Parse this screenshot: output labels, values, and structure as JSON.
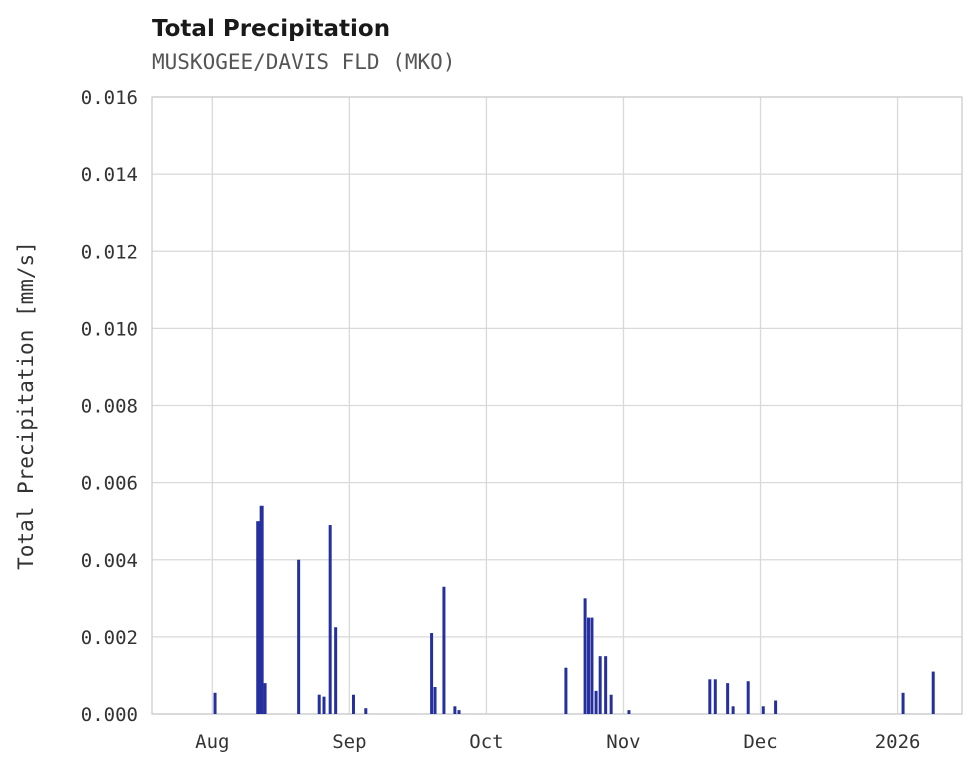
{
  "header": {
    "title": "Total Precipitation",
    "subtitle": "MUSKOGEE/DAVIS FLD (MKO)"
  },
  "colors": {
    "bar": "#252f9e",
    "grid": "#d9d9d9",
    "axis_border": "#cccccc",
    "title": "#191919",
    "subtitle": "#555555",
    "tick": "#333333"
  },
  "chart_data": {
    "type": "bar",
    "title": "Total Precipitation",
    "subtitle": "MUSKOGEE/DAVIS FLD (MKO)",
    "xlabel": "",
    "ylabel": "Total Precipitation [mm/s]",
    "grid": true,
    "legend": false,
    "ylim": [
      0,
      0.016
    ],
    "xlim": [
      -0.44,
      5.47
    ],
    "x_scale": "months: 0=Aug, 1=Sep, 2=Oct, 3=Nov, 4=Dec, 5=2026(Jan)",
    "yticks": [
      {
        "value": 0.0,
        "label": "0.000"
      },
      {
        "value": 0.002,
        "label": "0.002"
      },
      {
        "value": 0.004,
        "label": "0.004"
      },
      {
        "value": 0.006,
        "label": "0.006"
      },
      {
        "value": 0.008,
        "label": "0.008"
      },
      {
        "value": 0.01,
        "label": "0.010"
      },
      {
        "value": 0.012,
        "label": "0.012"
      },
      {
        "value": 0.014,
        "label": "0.014"
      },
      {
        "value": 0.016,
        "label": "0.016"
      }
    ],
    "xticks": [
      {
        "value": 0,
        "label": "Aug"
      },
      {
        "value": 1,
        "label": "Sep"
      },
      {
        "value": 2,
        "label": "Oct"
      },
      {
        "value": 3,
        "label": "Nov"
      },
      {
        "value": 4,
        "label": "Dec"
      },
      {
        "value": 5,
        "label": "2026"
      }
    ],
    "points": [
      {
        "x": 0.02,
        "v": 0.00055
      },
      {
        "x": 0.335,
        "v": 0.005,
        "w": 4
      },
      {
        "x": 0.36,
        "v": 0.0054,
        "w": 4
      },
      {
        "x": 0.385,
        "v": 0.0008
      },
      {
        "x": 0.63,
        "v": 0.004
      },
      {
        "x": 0.78,
        "v": 0.0005
      },
      {
        "x": 0.815,
        "v": 0.00045
      },
      {
        "x": 0.86,
        "v": 0.0049
      },
      {
        "x": 0.9,
        "v": 0.00225
      },
      {
        "x": 1.03,
        "v": 0.0005
      },
      {
        "x": 1.12,
        "v": 0.00015
      },
      {
        "x": 1.6,
        "v": 0.0021
      },
      {
        "x": 1.625,
        "v": 0.0007
      },
      {
        "x": 1.69,
        "v": 0.0033
      },
      {
        "x": 1.77,
        "v": 0.0002
      },
      {
        "x": 1.8,
        "v": 0.0001
      },
      {
        "x": 2.58,
        "v": 0.0012
      },
      {
        "x": 2.72,
        "v": 0.003
      },
      {
        "x": 2.745,
        "v": 0.0025
      },
      {
        "x": 2.77,
        "v": 0.0025
      },
      {
        "x": 2.8,
        "v": 0.0006
      },
      {
        "x": 2.83,
        "v": 0.0015
      },
      {
        "x": 2.87,
        "v": 0.0015
      },
      {
        "x": 2.91,
        "v": 0.0005
      },
      {
        "x": 3.04,
        "v": 0.0001
      },
      {
        "x": 3.63,
        "v": 0.0009
      },
      {
        "x": 3.67,
        "v": 0.0009
      },
      {
        "x": 3.76,
        "v": 0.0008
      },
      {
        "x": 3.8,
        "v": 0.0002
      },
      {
        "x": 3.91,
        "v": 0.00085
      },
      {
        "x": 4.02,
        "v": 0.0002
      },
      {
        "x": 4.11,
        "v": 0.00035
      },
      {
        "x": 5.04,
        "v": 0.00055
      },
      {
        "x": 5.26,
        "v": 0.0011
      }
    ]
  }
}
